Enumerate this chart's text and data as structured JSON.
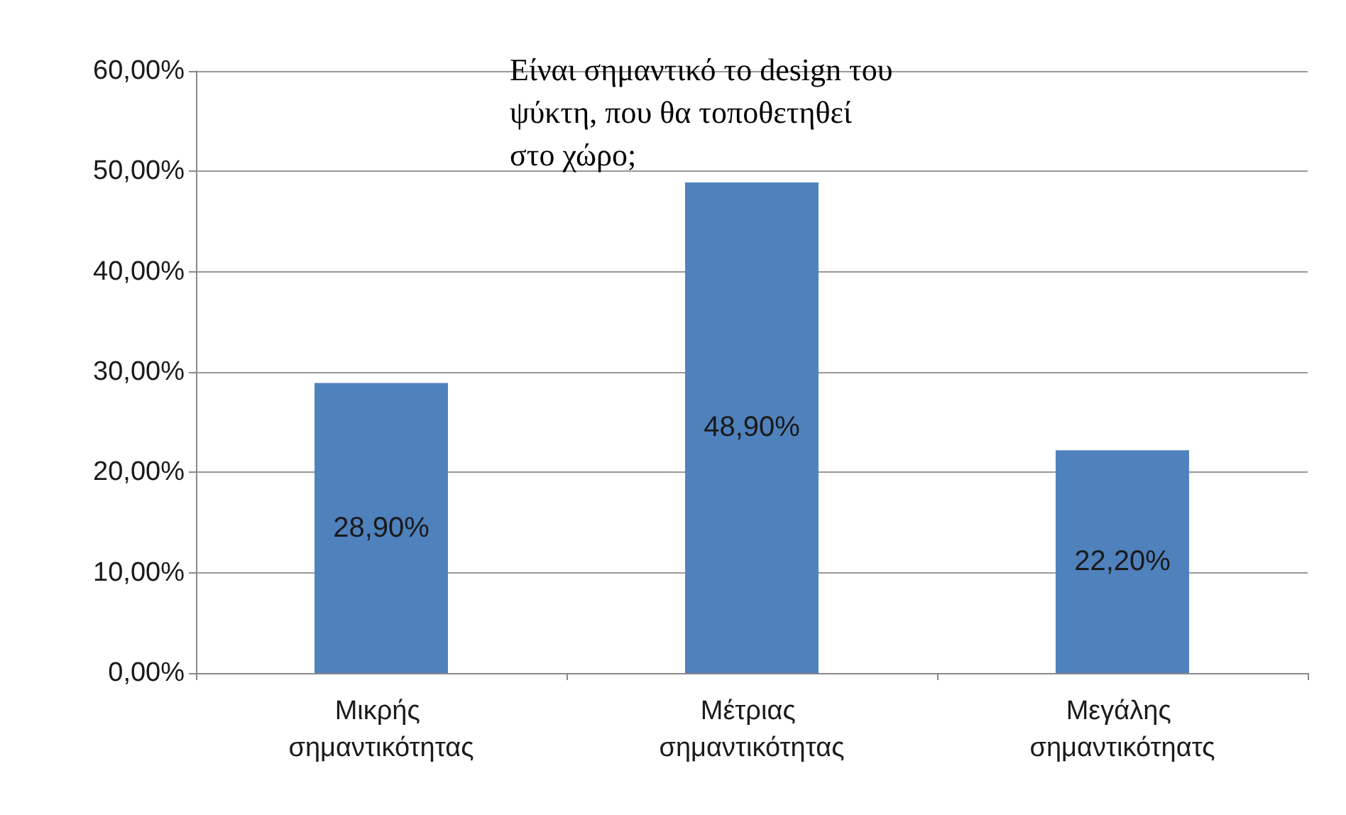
{
  "chart_data": {
    "type": "bar",
    "title": "Είναι σημαντικό το design του ψύκτη, που θα τοποθετηθεί στο χώρο;",
    "categories": [
      "Μικρής σημαντικότητας",
      "Μέτριας σημαντικότητας",
      "Μεγάλης σημαντικότηατς"
    ],
    "values": [
      28.9,
      48.9,
      22.2
    ],
    "color": "#4f81bd",
    "value_labels": [
      "28,90%",
      "48,90%",
      "22,20%"
    ],
    "ylim": [
      0,
      60
    ],
    "yticks": [
      {
        "value": 0,
        "label": "0,00%"
      },
      {
        "value": 10,
        "label": "10,00%"
      },
      {
        "value": 20,
        "label": "20,00%"
      },
      {
        "value": 30,
        "label": "30,00%"
      },
      {
        "value": 40,
        "label": "40,00%"
      },
      {
        "value": 50,
        "label": "50,00%"
      },
      {
        "value": 60,
        "label": "60,00%"
      }
    ],
    "grid": "y"
  }
}
